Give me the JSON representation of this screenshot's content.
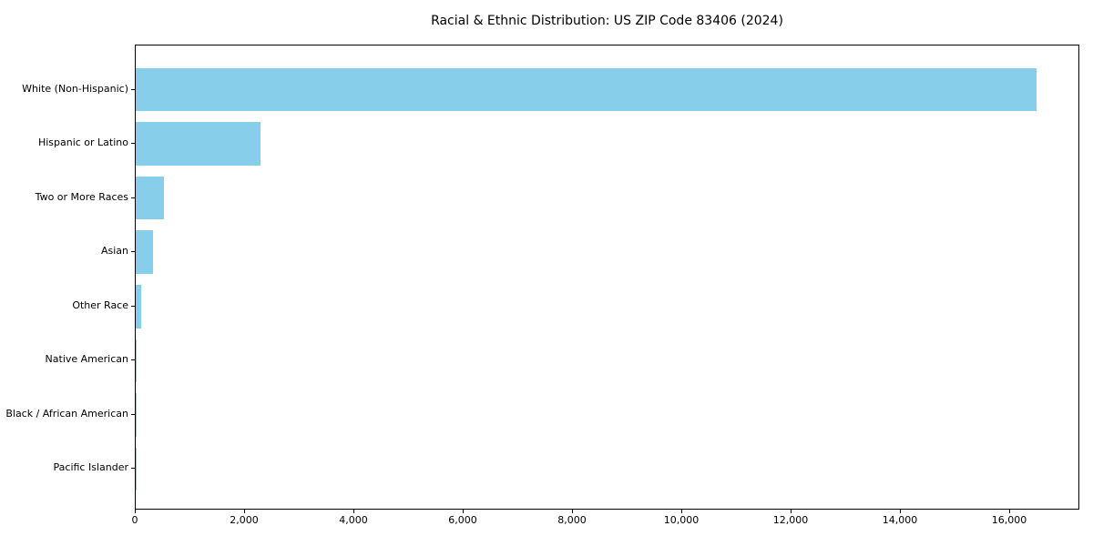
{
  "chart_data": {
    "type": "bar",
    "orientation": "horizontal",
    "title": "Racial & Ethnic Distribution: US ZIP Code 83406 (2024)",
    "categories": [
      "White (Non-Hispanic)",
      "Hispanic or Latino",
      "Two or More Races",
      "Asian",
      "Other Race",
      "Native American",
      "Black / African American",
      "Pacific Islander"
    ],
    "values": [
      16480,
      2280,
      510,
      310,
      100,
      20,
      10,
      5
    ],
    "bar_color": "#87CEEB",
    "xlabel": "",
    "ylabel": "",
    "xlim": [
      0,
      17283
    ],
    "x_ticks": [
      0,
      2000,
      4000,
      6000,
      8000,
      10000,
      12000,
      14000,
      16000
    ],
    "x_tick_labels": [
      "0",
      "2,000",
      "4,000",
      "6,000",
      "8,000",
      "10,000",
      "12,000",
      "14,000",
      "16,000"
    ],
    "grid": false,
    "legend": null,
    "axis_color": "#000000",
    "background_color": "#ffffff"
  }
}
